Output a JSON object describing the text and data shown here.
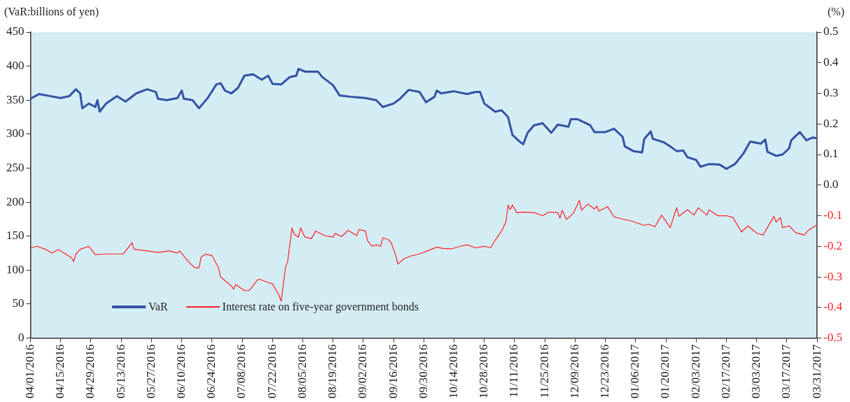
{
  "chart_data": {
    "type": "line",
    "ylabel": "(VaR:billions of yen)",
    "y2label": "(%)",
    "xlim": [
      "2016-04-01",
      "2017-03-31"
    ],
    "xticks": [
      {
        "value": "2016-04-01",
        "label": "04/01/2016"
      },
      {
        "value": "2016-04-15",
        "label": "04/15/2016"
      },
      {
        "value": "2016-04-29",
        "label": "04/29/2016"
      },
      {
        "value": "2016-05-13",
        "label": "05/13/2016"
      },
      {
        "value": "2016-05-27",
        "label": "05/27/2016"
      },
      {
        "value": "2016-06-10",
        "label": "06/10/2016"
      },
      {
        "value": "2016-06-24",
        "label": "06/24/2016"
      },
      {
        "value": "2016-07-08",
        "label": "07/08/2016"
      },
      {
        "value": "2016-07-22",
        "label": "07/22/2016"
      },
      {
        "value": "2016-08-05",
        "label": "08/05/2016"
      },
      {
        "value": "2016-08-19",
        "label": "08/19/2016"
      },
      {
        "value": "2016-09-02",
        "label": "09/02/2016"
      },
      {
        "value": "2016-09-16",
        "label": "09/16/2016"
      },
      {
        "value": "2016-09-30",
        "label": "09/30/2016"
      },
      {
        "value": "2016-10-14",
        "label": "10/14/2016"
      },
      {
        "value": "2016-10-28",
        "label": "10/28/2016"
      },
      {
        "value": "2016-11-11",
        "label": "11/11/2016"
      },
      {
        "value": "2016-11-25",
        "label": "11/25/2016"
      },
      {
        "value": "2016-12-09",
        "label": "12/09/2016"
      },
      {
        "value": "2016-12-23",
        "label": "12/23/2016"
      },
      {
        "value": "2017-01-06",
        "label": "01/06/2017"
      },
      {
        "value": "2017-01-20",
        "label": "01/20/2017"
      },
      {
        "value": "2017-02-03",
        "label": "02/03/2017"
      },
      {
        "value": "2017-02-17",
        "label": "02/17/2017"
      },
      {
        "value": "2017-03-03",
        "label": "03/03/2017"
      },
      {
        "value": "2017-03-17",
        "label": "03/17/2017"
      },
      {
        "value": "2017-03-31",
        "label": "03/31/2017"
      }
    ],
    "ylim": [
      0,
      450
    ],
    "yticks": [
      0,
      50,
      100,
      150,
      200,
      250,
      300,
      350,
      400,
      450
    ],
    "y2lim": [
      -0.5,
      0.5
    ],
    "y2ticks": [
      -0.5,
      -0.4,
      -0.3,
      -0.2,
      -0.1,
      {
        "value": 0,
        "label": "0.0"
      },
      0.1,
      0.2,
      0.3,
      0.4,
      0.5
    ],
    "grid": false,
    "legend": "bottom left",
    "marker": "none",
    "line_style": "solid",
    "series": [
      {
        "name": "VaR",
        "color": "#3352a4",
        "x": [
          "2016-04-01",
          "2016-04-05",
          "2016-04-10",
          "2016-04-15",
          "2016-04-19",
          "2016-04-22",
          "2016-04-24",
          "2016-04-25",
          "2016-04-28",
          "2016-05-01",
          "2016-05-02",
          "2016-05-03",
          "2016-05-06",
          "2016-05-11",
          "2016-05-15",
          "2016-05-20",
          "2016-05-25",
          "2016-05-29",
          "2016-05-30",
          "2016-06-03",
          "2016-06-08",
          "2016-06-10",
          "2016-06-11",
          "2016-06-15",
          "2016-06-18",
          "2016-06-22",
          "2016-06-26",
          "2016-06-28",
          "2016-06-30",
          "2016-07-03",
          "2016-07-06",
          "2016-07-09",
          "2016-07-13",
          "2016-07-17",
          "2016-07-20",
          "2016-07-22",
          "2016-07-26",
          "2016-07-30",
          "2016-08-02",
          "2016-08-03",
          "2016-08-06",
          "2016-08-12",
          "2016-08-14",
          "2016-08-19",
          "2016-08-22",
          "2016-08-27",
          "2016-09-03",
          "2016-09-08",
          "2016-09-11",
          "2016-09-16",
          "2016-09-19",
          "2016-09-23",
          "2016-09-28",
          "2016-10-01",
          "2016-10-05",
          "2016-10-06",
          "2016-10-08",
          "2016-10-14",
          "2016-10-20",
          "2016-10-24",
          "2016-10-26",
          "2016-10-28",
          "2016-11-02",
          "2016-11-05",
          "2016-11-08",
          "2016-11-10",
          "2016-11-13",
          "2016-11-15",
          "2016-11-17",
          "2016-11-20",
          "2016-11-24",
          "2016-11-28",
          "2016-12-01",
          "2016-12-06",
          "2016-12-07",
          "2016-12-10",
          "2016-12-16",
          "2016-12-18",
          "2016-12-23",
          "2016-12-27",
          "2016-12-31",
          "2017-01-01",
          "2017-01-05",
          "2017-01-09",
          "2017-01-10",
          "2017-01-13",
          "2017-01-14",
          "2017-01-19",
          "2017-01-22",
          "2017-01-25",
          "2017-01-28",
          "2017-01-30",
          "2017-02-03",
          "2017-02-05",
          "2017-02-09",
          "2017-02-14",
          "2017-02-17",
          "2017-02-21",
          "2017-02-25",
          "2017-02-28",
          "2017-03-05",
          "2017-03-07",
          "2017-03-08",
          "2017-03-12",
          "2017-03-15",
          "2017-03-18",
          "2017-03-19",
          "2017-03-23",
          "2017-03-26",
          "2017-03-29",
          "2017-03-31"
        ],
        "values": [
          352,
          359,
          356,
          353,
          356,
          366,
          360,
          338,
          345,
          340,
          350,
          333,
          345,
          356,
          348,
          360,
          366,
          362,
          352,
          350,
          353,
          364,
          352,
          350,
          338,
          353,
          373,
          375,
          364,
          360,
          368,
          386,
          388,
          380,
          386,
          374,
          373,
          384,
          386,
          396,
          392,
          392,
          384,
          372,
          357,
          355,
          353,
          350,
          340,
          345,
          352,
          365,
          362,
          347,
          355,
          364,
          360,
          363,
          359,
          362,
          362,
          345,
          333,
          335,
          325,
          299,
          290,
          285,
          302,
          313,
          316,
          302,
          314,
          311,
          322,
          322,
          313,
          303,
          303,
          308,
          296,
          282,
          275,
          273,
          293,
          304,
          293,
          288,
          282,
          275,
          276,
          266,
          262,
          252,
          256,
          255,
          249,
          256,
          272,
          289,
          286,
          292,
          274,
          268,
          270,
          279,
          291,
          303,
          291,
          295,
          294
        ]
      },
      {
        "name": "Interest rate on five-year government bonds",
        "color": "#ff2020",
        "axis": "y2",
        "x": [
          "2016-04-01",
          "2016-04-04",
          "2016-04-08",
          "2016-04-11",
          "2016-04-14",
          "2016-04-16",
          "2016-04-20",
          "2016-04-21",
          "2016-04-22",
          "2016-04-24",
          "2016-04-28",
          "2016-05-01",
          "2016-05-06",
          "2016-05-09",
          "2016-05-14",
          "2016-05-18",
          "2016-05-19",
          "2016-05-25",
          "2016-05-30",
          "2016-06-04",
          "2016-06-08",
          "2016-06-09",
          "2016-06-13",
          "2016-06-16",
          "2016-06-18",
          "2016-06-19",
          "2016-06-21",
          "2016-06-24",
          "2016-06-27",
          "2016-06-28",
          "2016-07-03",
          "2016-07-04",
          "2016-07-05",
          "2016-07-09",
          "2016-07-11",
          "2016-07-12",
          "2016-07-15",
          "2016-07-16",
          "2016-07-19",
          "2016-07-22",
          "2016-07-25",
          "2016-07-26",
          "2016-07-28",
          "2016-07-29",
          "2016-07-31",
          "2016-08-01",
          "2016-08-03",
          "2016-08-04",
          "2016-08-06",
          "2016-08-09",
          "2016-08-11",
          "2016-08-15",
          "2016-08-19",
          "2016-08-20",
          "2016-08-23",
          "2016-08-26",
          "2016-08-30",
          "2016-08-31",
          "2016-09-03",
          "2016-09-04",
          "2016-09-06",
          "2016-09-08",
          "2016-09-10",
          "2016-09-11",
          "2016-09-14",
          "2016-09-15",
          "2016-09-17",
          "2016-09-18",
          "2016-09-21",
          "2016-09-24",
          "2016-09-28",
          "2016-10-03",
          "2016-10-06",
          "2016-10-09",
          "2016-10-13",
          "2016-10-17",
          "2016-10-20",
          "2016-10-24",
          "2016-10-28",
          "2016-10-31",
          "2016-11-02",
          "2016-11-05",
          "2016-11-07",
          "2016-11-08",
          "2016-11-09",
          "2016-11-10",
          "2016-11-12",
          "2016-11-15",
          "2016-11-20",
          "2016-11-24",
          "2016-11-27",
          "2016-12-01",
          "2016-12-02",
          "2016-12-03",
          "2016-12-05",
          "2016-12-08",
          "2016-12-11",
          "2016-12-12",
          "2016-12-15",
          "2016-12-18",
          "2016-12-19",
          "2016-12-20",
          "2016-12-24",
          "2016-12-27",
          "2017-01-01",
          "2017-01-04",
          "2017-01-10",
          "2017-01-12",
          "2017-01-15",
          "2017-01-18",
          "2017-01-22",
          "2017-01-25",
          "2017-01-26",
          "2017-01-30",
          "2017-02-02",
          "2017-02-04",
          "2017-02-08",
          "2017-02-09",
          "2017-02-13",
          "2017-02-17",
          "2017-02-20",
          "2017-02-24",
          "2017-02-27",
          "2017-03-03",
          "2017-03-06",
          "2017-03-11",
          "2017-03-12",
          "2017-03-14",
          "2017-03-15",
          "2017-03-18",
          "2017-03-21",
          "2017-03-25",
          "2017-03-27",
          "2017-03-29",
          "2017-03-31"
        ],
        "values": [
          -0.205,
          -0.2,
          -0.21,
          -0.222,
          -0.21,
          -0.22,
          -0.237,
          -0.25,
          -0.225,
          -0.21,
          -0.2,
          -0.227,
          -0.225,
          -0.225,
          -0.225,
          -0.188,
          -0.21,
          -0.215,
          -0.22,
          -0.215,
          -0.222,
          -0.215,
          -0.25,
          -0.27,
          -0.27,
          -0.235,
          -0.226,
          -0.23,
          -0.27,
          -0.3,
          -0.33,
          -0.34,
          -0.325,
          -0.345,
          -0.345,
          -0.338,
          -0.31,
          -0.308,
          -0.316,
          -0.323,
          -0.36,
          -0.38,
          -0.27,
          -0.25,
          -0.14,
          -0.16,
          -0.17,
          -0.14,
          -0.17,
          -0.175,
          -0.15,
          -0.165,
          -0.17,
          -0.158,
          -0.168,
          -0.148,
          -0.165,
          -0.145,
          -0.15,
          -0.182,
          -0.2,
          -0.195,
          -0.2,
          -0.172,
          -0.18,
          -0.19,
          -0.23,
          -0.258,
          -0.24,
          -0.232,
          -0.225,
          -0.211,
          -0.203,
          -0.207,
          -0.208,
          -0.2,
          -0.195,
          -0.205,
          -0.2,
          -0.205,
          -0.18,
          -0.15,
          -0.12,
          -0.065,
          -0.08,
          -0.065,
          -0.09,
          -0.088,
          -0.09,
          -0.1,
          -0.088,
          -0.09,
          -0.108,
          -0.082,
          -0.112,
          -0.094,
          -0.05,
          -0.082,
          -0.062,
          -0.078,
          -0.068,
          -0.085,
          -0.07,
          -0.104,
          -0.113,
          -0.117,
          -0.132,
          -0.128,
          -0.136,
          -0.098,
          -0.139,
          -0.074,
          -0.102,
          -0.08,
          -0.098,
          -0.074,
          -0.098,
          -0.081,
          -0.1,
          -0.1,
          -0.106,
          -0.153,
          -0.133,
          -0.157,
          -0.163,
          -0.102,
          -0.121,
          -0.106,
          -0.139,
          -0.133,
          -0.155,
          -0.163,
          -0.147,
          -0.139,
          -0.129
        ]
      }
    ]
  }
}
